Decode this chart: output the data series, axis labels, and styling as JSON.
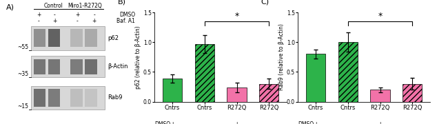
{
  "panel_B": {
    "title": "B)",
    "ylabel": "p62 (relative to β-Actin)",
    "categories": [
      "Cntrs",
      "Cntrs",
      "R272Q",
      "R272Q"
    ],
    "values": [
      0.39,
      0.97,
      0.24,
      0.3
    ],
    "errors": [
      0.07,
      0.15,
      0.08,
      0.09
    ],
    "colors": [
      "#2db34a",
      "#2db34a",
      "#f272a8",
      "#f272a8"
    ],
    "hatches": [
      "",
      "////",
      "",
      "////"
    ],
    "ylim": [
      0,
      1.5
    ],
    "yticks": [
      0.0,
      0.5,
      1.0,
      1.5
    ],
    "dmso": [
      "+",
      "-",
      "+",
      "-"
    ],
    "baf_a1": [
      "-",
      "+",
      "-",
      "+"
    ],
    "sig_bar_from": 1,
    "sig_bar_to": 3,
    "sig_label": "*"
  },
  "panel_C": {
    "title": "C)",
    "ylabel": "Rab9 (relative to β-Actin)",
    "categories": [
      "Cntrs",
      "Cntrs",
      "R272Q",
      "R272Q"
    ],
    "values": [
      0.8,
      1.0,
      0.2,
      0.3
    ],
    "errors": [
      0.08,
      0.16,
      0.04,
      0.1
    ],
    "colors": [
      "#2db34a",
      "#2db34a",
      "#f272a8",
      "#f272a8"
    ],
    "hatches": [
      "",
      "////",
      "",
      "////"
    ],
    "ylim": [
      0,
      1.5
    ],
    "yticks": [
      0.0,
      0.5,
      1.0,
      1.5
    ],
    "dmso": [
      "+",
      "-",
      "+",
      "-"
    ],
    "baf_a1": [
      "-",
      "+",
      "-",
      "+"
    ],
    "sig_bar_from": 1,
    "sig_bar_to": 3,
    "sig_label": "*"
  },
  "background_color": "#ffffff",
  "panel_A_label": "A)",
  "control_label": "Control",
  "miro_label": "Miro1-R272Q",
  "dmso_label": "DMSO",
  "baf_label": "Baf. A1",
  "col_plus_minus_dmso": [
    "+",
    "-",
    "+",
    "-"
  ],
  "col_plus_minus_baf": [
    "-",
    "+",
    "-",
    "+"
  ],
  "blots": [
    {
      "mw": "~55",
      "protein": "p62"
    },
    {
      "mw": "~35",
      "protein": "β-Actin"
    },
    {
      "mw": "~15",
      "protein": "Rab9"
    }
  ]
}
